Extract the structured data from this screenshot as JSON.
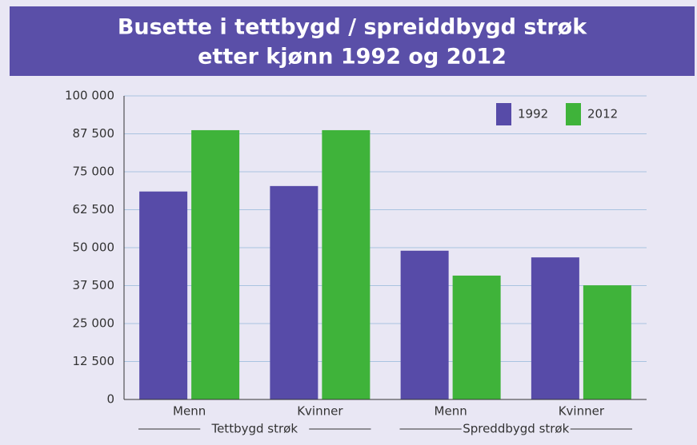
{
  "chart_data": {
    "type": "bar",
    "title": [
      "Busette i tettbygd / spreiddbygd strøk",
      "etter kjønn 1992 og 2012"
    ],
    "categories": [
      "Menn",
      "Kvinner",
      "Menn",
      "Kvinner"
    ],
    "groups": [
      "Tettbygd strøk",
      "Spreddbygd strøk"
    ],
    "series": [
      {
        "name": "1992",
        "color": "#574ba8",
        "values": [
          68500,
          70300,
          49000,
          46800
        ]
      },
      {
        "name": "2012",
        "color": "#3fb33a",
        "values": [
          88700,
          88700,
          40800,
          37600
        ]
      }
    ],
    "ylim": [
      0,
      100000
    ],
    "yticks": [
      0,
      {
        "value": 12500,
        "label": "12 500"
      },
      {
        "value": 25000,
        "label": "25 000"
      },
      {
        "value": 37500,
        "label": "37 500"
      },
      {
        "value": 50000,
        "label": "50 000"
      },
      {
        "value": 62500,
        "label": "62 500"
      },
      {
        "value": 75000,
        "label": "75 000"
      },
      {
        "value": 87500,
        "label": "87 500"
      },
      {
        "value": 100000,
        "label": "100 000"
      }
    ],
    "grid": true,
    "legend": "top-right"
  }
}
